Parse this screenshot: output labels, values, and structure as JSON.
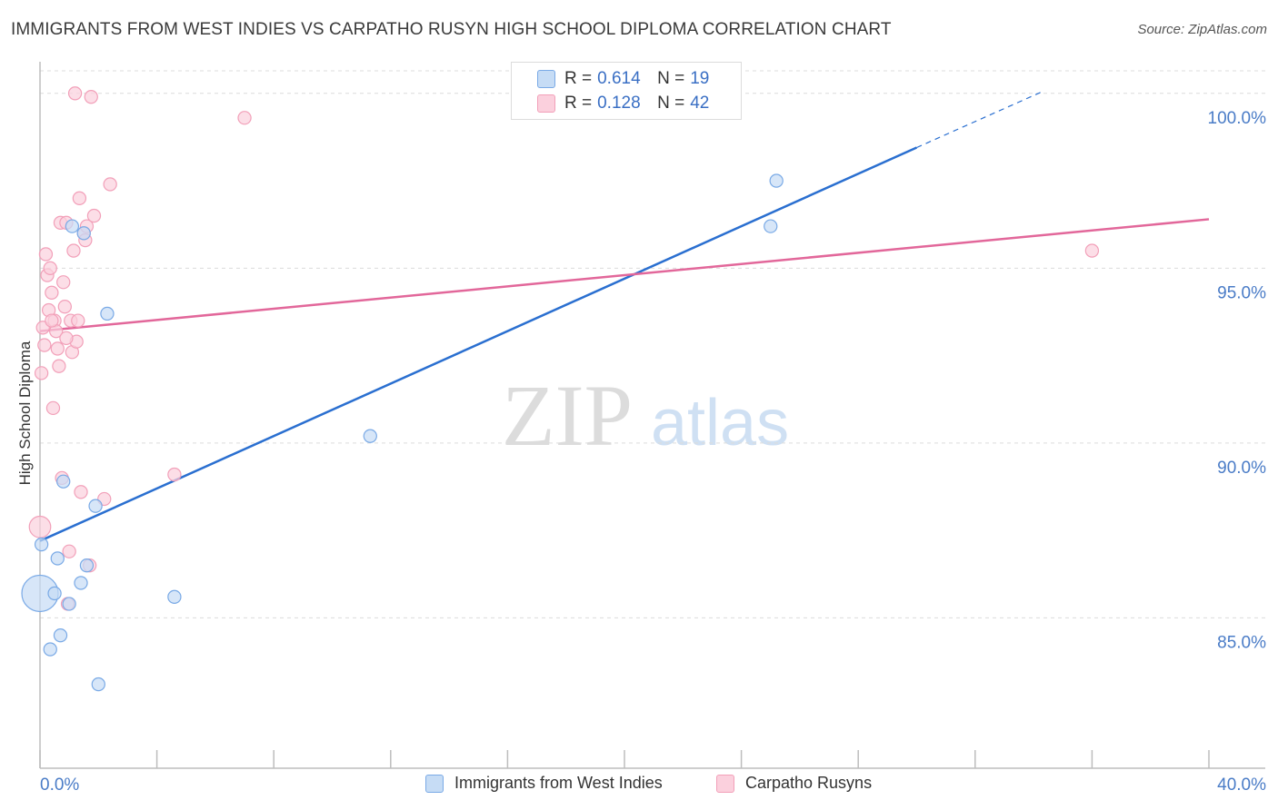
{
  "title": "IMMIGRANTS FROM WEST INDIES VS CARPATHO RUSYN HIGH SCHOOL DIPLOMA CORRELATION CHART",
  "source": "Source: ZipAtlas.com",
  "watermark": {
    "zip": "ZIP",
    "atlas": "atlas"
  },
  "legend": {
    "r_label": "R =",
    "n_label": "N =",
    "rows": [
      {
        "r": "0.614",
        "n": "19"
      },
      {
        "r": "0.128",
        "n": "42"
      }
    ]
  },
  "chart_data": {
    "type": "scatter",
    "title": "IMMIGRANTS FROM WEST INDIES VS CARPATHO RUSYN HIGH SCHOOL DIPLOMA CORRELATION CHART",
    "xlabel": "",
    "ylabel": "High School Diploma",
    "xlim": [
      0,
      40
    ],
    "ylim": [
      80.7,
      100.8
    ],
    "x_ticks": [
      0,
      4,
      8,
      12,
      16,
      20,
      24,
      28,
      32,
      36,
      40
    ],
    "x_tick_labels": [
      "0.0%",
      "40.0%"
    ],
    "y_ticks": [
      85,
      90,
      95,
      100
    ],
    "y_tick_labels": [
      "85.0%",
      "90.0%",
      "95.0%",
      "100.0%"
    ],
    "colors": {
      "blue_fill": "#c6dcf5",
      "blue_stroke": "#7aaae6",
      "blue_line": "#2a6fd0",
      "pink_fill": "#fbd0dd",
      "pink_stroke": "#f2a0b9",
      "pink_line": "#e2679a",
      "grid": "#dcdcdc",
      "tick_text": "#4a7cc7"
    },
    "series": [
      {
        "name": "Immigrants from West Indies",
        "r": 0.614,
        "n": 19,
        "trend": {
          "x0": 0,
          "y0": 87.2,
          "x1": 30.0,
          "y1": 98.45,
          "dash_to_x": 34.3,
          "dash_to_y": 100.05
        },
        "points": [
          [
            0.0,
            85.7
          ],
          [
            0.05,
            87.1
          ],
          [
            0.35,
            84.1
          ],
          [
            0.5,
            85.7
          ],
          [
            0.6,
            86.7
          ],
          [
            0.7,
            84.5
          ],
          [
            0.8,
            88.9
          ],
          [
            1.0,
            85.4
          ],
          [
            1.1,
            96.2
          ],
          [
            1.4,
            86.0
          ],
          [
            1.5,
            96.0
          ],
          [
            1.6,
            86.5
          ],
          [
            1.9,
            88.2
          ],
          [
            2.0,
            83.1
          ],
          [
            2.3,
            93.7
          ],
          [
            4.6,
            85.6
          ],
          [
            11.3,
            90.2
          ],
          [
            25.0,
            96.2
          ],
          [
            25.2,
            97.5
          ]
        ],
        "sizes": [
          34,
          12,
          12,
          12,
          12,
          12,
          12,
          12,
          12,
          12,
          12,
          12,
          12,
          12,
          12,
          12,
          12,
          12,
          12
        ]
      },
      {
        "name": "Carpatho Rusyns",
        "r": 0.128,
        "n": 42,
        "trend": {
          "x0": 0,
          "y0": 93.2,
          "x1": 40,
          "y1": 96.4
        },
        "points": [
          [
            0.0,
            87.6
          ],
          [
            0.05,
            92.0
          ],
          [
            0.1,
            93.3
          ],
          [
            0.15,
            92.8
          ],
          [
            0.2,
            95.4
          ],
          [
            0.25,
            94.8
          ],
          [
            0.3,
            93.8
          ],
          [
            0.35,
            95.0
          ],
          [
            0.4,
            94.3
          ],
          [
            0.45,
            91.0
          ],
          [
            0.5,
            93.5
          ],
          [
            0.55,
            93.2
          ],
          [
            0.6,
            92.7
          ],
          [
            0.65,
            92.2
          ],
          [
            0.7,
            96.3
          ],
          [
            0.75,
            89.0
          ],
          [
            0.8,
            94.6
          ],
          [
            0.85,
            93.9
          ],
          [
            0.9,
            96.3
          ],
          [
            0.95,
            85.4
          ],
          [
            1.0,
            86.9
          ],
          [
            1.05,
            93.5
          ],
          [
            1.1,
            92.6
          ],
          [
            1.15,
            95.5
          ],
          [
            1.2,
            100.0
          ],
          [
            1.25,
            92.9
          ],
          [
            1.3,
            93.5
          ],
          [
            1.35,
            97.0
          ],
          [
            1.4,
            88.6
          ],
          [
            1.5,
            96.0
          ],
          [
            1.55,
            95.8
          ],
          [
            1.6,
            96.2
          ],
          [
            1.7,
            86.5
          ],
          [
            1.75,
            99.9
          ],
          [
            1.85,
            96.5
          ],
          [
            2.2,
            88.4
          ],
          [
            2.4,
            97.4
          ],
          [
            4.6,
            89.1
          ],
          [
            7.0,
            99.3
          ],
          [
            36.0,
            95.5
          ],
          [
            0.4,
            93.5
          ],
          [
            0.9,
            93.0
          ]
        ],
        "sizes": [
          20,
          12,
          12,
          12,
          12,
          12,
          12,
          12,
          12,
          12,
          12,
          12,
          12,
          12,
          12,
          12,
          12,
          12,
          12,
          12,
          12,
          12,
          12,
          12,
          12,
          12,
          12,
          12,
          12,
          12,
          12,
          12,
          12,
          12,
          12,
          12,
          12,
          12,
          12,
          12,
          12,
          12
        ]
      }
    ]
  }
}
